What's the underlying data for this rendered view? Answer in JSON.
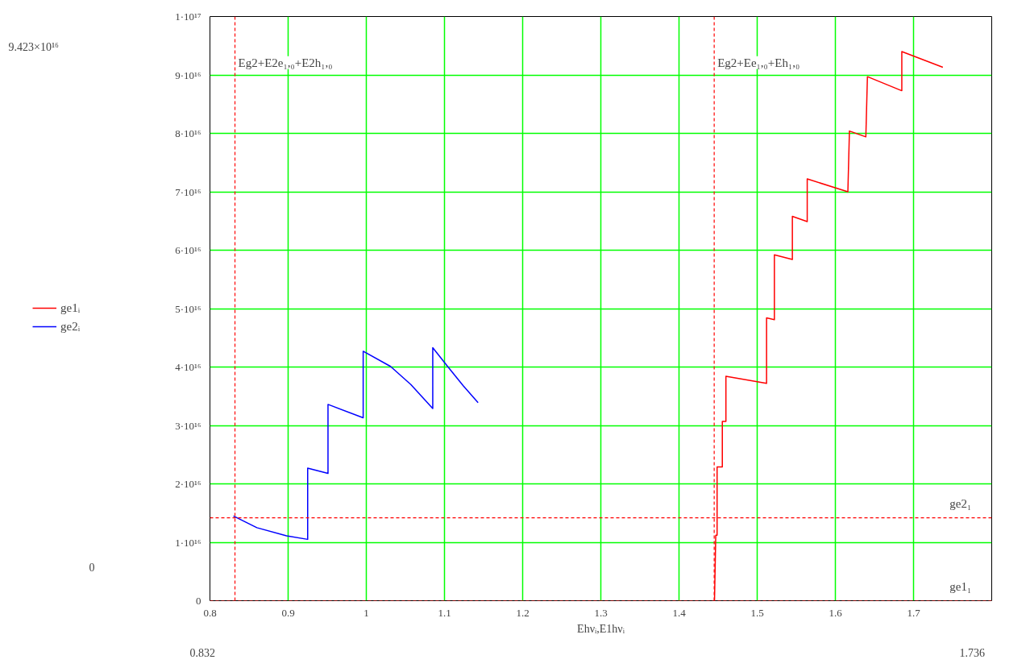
{
  "chart_data": {
    "type": "line",
    "xlabel": "Ehνᵢ,E1hνᵢ",
    "series": [
      {
        "name": "ge1ᵢ",
        "color": "#ff0000",
        "x": [
          1.4454,
          1.447,
          1.4487,
          1.4487,
          1.4554,
          1.4554,
          1.46,
          1.46,
          1.512,
          1.512,
          1.522,
          1.522,
          1.545,
          1.545,
          1.564,
          1.564,
          1.616,
          1.618,
          1.639,
          1.641,
          1.685,
          1.685,
          1.7375
        ],
        "values": [
          0,
          1.12e+16,
          1.12e+16,
          2.29e+16,
          2.29e+16,
          3.07e+16,
          3.07e+16,
          3.84e+16,
          3.72e+16,
          4.84e+16,
          4.81e+16,
          5.92e+16,
          5.84e+16,
          6.58e+16,
          6.49e+16,
          7.22e+16,
          7e+16,
          8.04e+16,
          7.94e+16,
          8.97e+16,
          8.73e+16,
          9.4e+16,
          9.13e+16
        ]
      },
      {
        "name": "ge2ᵢ",
        "color": "#0000ff",
        "x": [
          0.83,
          0.86,
          0.898,
          0.925,
          0.925,
          0.951,
          0.951,
          0.996,
          0.996,
          1.031,
          1.057,
          1.085,
          1.085,
          1.104,
          1.124,
          1.143
        ],
        "values": [
          1.45e+16,
          1.25e+16,
          1.11e+16,
          1.05e+16,
          2.27e+16,
          2.18e+16,
          3.36e+16,
          3.13e+16,
          4.27e+16,
          4.01e+16,
          3.7e+16,
          3.29e+16,
          4.33e+16,
          4.01e+16,
          3.68e+16,
          3.39e+16
        ]
      }
    ],
    "xlim": [
      0.8,
      1.8
    ],
    "xticks": [
      0.8,
      0.9,
      1,
      1.1,
      1.2,
      1.3,
      1.4,
      1.5,
      1.6,
      1.7
    ],
    "ylim": [
      0,
      1e+17
    ],
    "yticks": [
      {
        "value": 0,
        "label": "0"
      },
      {
        "value": 1e+16,
        "label": "1·10¹⁶"
      },
      {
        "value": 2e+16,
        "label": "2·10¹⁶"
      },
      {
        "value": 3e+16,
        "label": "3·10¹⁶"
      },
      {
        "value": 4e+16,
        "label": "4·10¹⁶"
      },
      {
        "value": 5e+16,
        "label": "5·10¹⁶"
      },
      {
        "value": 6e+16,
        "label": "6·10¹⁶"
      },
      {
        "value": 7e+16,
        "label": "7·10¹⁶"
      },
      {
        "value": 8e+16,
        "label": "8·10¹⁶"
      },
      {
        "value": 9e+16,
        "label": "9·10¹⁶"
      },
      {
        "value": 1e+17,
        "label": "1·10¹⁷"
      }
    ],
    "ref_lines": [
      {
        "axis": "x",
        "value": 0.832,
        "label": "Eg2+E2e₁,₀+E2h₁,₀",
        "color": "#ff0000",
        "line_style": "dashed"
      },
      {
        "axis": "x",
        "value": 1.445,
        "label": "Eg2+Ee₁,₀+Eh₁,₀",
        "color": "#ff0000",
        "line_style": "dashed"
      },
      {
        "axis": "y",
        "value": 1.42e+16,
        "label": "ge2₁",
        "color": "#ff0000",
        "line_style": "dashed"
      },
      {
        "axis": "y",
        "value": 0,
        "label": "ge1₁",
        "color": "#ff0000",
        "line_style": "dashed"
      }
    ],
    "annotations": [
      "9.423×10¹⁶",
      "0",
      "0.832",
      "1.736"
    ],
    "grid": true,
    "legend": "left",
    "line_style": "solid",
    "marker": "none"
  }
}
